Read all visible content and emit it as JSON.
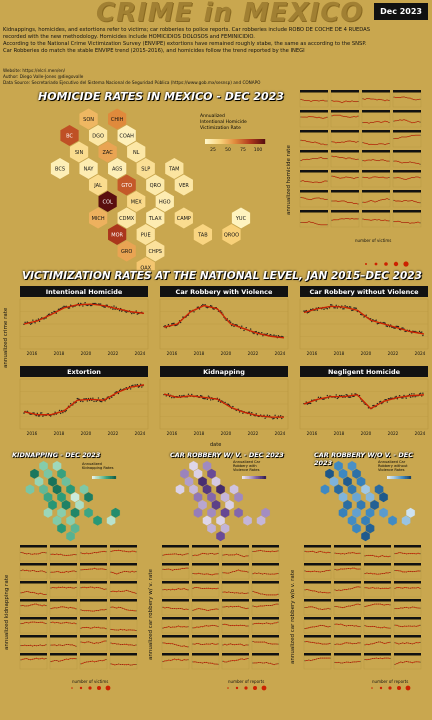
{
  "header": {
    "title": "CRIME in MEXICO",
    "badge": "Dec 2023"
  },
  "intro": {
    "lines": [
      "Kidnappings, homicides, and extortions refer to victims; car robberies to police reports. Car robberies include ROBO DE COCHE DE 4 RUEDAS",
      "recorded with the new methodology. Homicides include HOMICIDIOS DOLOSOS and FEMINICIDIO.",
      "According to the National Crime Victimization Survey (ENVIPE) extortions have remained roughly stabe, the same as according to the SNSP.",
      "Car Robberies do match the stable ENVIPE trend (2015-2016), and homicides follow the trend reported by the INEGI"
    ],
    "website": "Website: https://elcri.men/en/",
    "author": "Author: Diego Valle-Jones @diegovalle",
    "source": "Data Source: Secretariado Ejecutivo del Sistema Nacional de Seguridad Pública (https://www.gob.mx/sesnsp) and CONAPO"
  },
  "homicide_map": {
    "title": "HOMICIDE RATES IN MEXICO - DEC 2023",
    "legend_title": "Annualized\nIntentional Homicide\nVictimization Rate",
    "legend_ticks": [
      "25",
      "50",
      "75",
      "100"
    ],
    "states": [
      {
        "abbr": "SON",
        "v": 38
      },
      {
        "abbr": "CHIH",
        "v": 55
      },
      {
        "abbr": "BC",
        "v": 75
      },
      {
        "abbr": "DGO",
        "v": 12
      },
      {
        "abbr": "COAH",
        "v": 5
      },
      {
        "abbr": "SIN",
        "v": 20
      },
      {
        "abbr": "ZAC",
        "v": 45
      },
      {
        "abbr": "NL",
        "v": 12
      },
      {
        "abbr": "BCS",
        "v": 6
      },
      {
        "abbr": "NAY",
        "v": 8
      },
      {
        "abbr": "AGS",
        "v": 6
      },
      {
        "abbr": "SLP",
        "v": 18
      },
      {
        "abbr": "TAM",
        "v": 14
      },
      {
        "abbr": "JAL",
        "v": 20
      },
      {
        "abbr": "GTO",
        "v": 72
      },
      {
        "abbr": "QRO",
        "v": 10
      },
      {
        "abbr": "VER",
        "v": 12
      },
      {
        "abbr": "COL",
        "v": 110
      },
      {
        "abbr": "MEX",
        "v": 22
      },
      {
        "abbr": "HGO",
        "v": 8
      },
      {
        "abbr": "MICH",
        "v": 40
      },
      {
        "abbr": "CDMX",
        "v": 12
      },
      {
        "abbr": "TLAX",
        "v": 8
      },
      {
        "abbr": "CAMP",
        "v": 20
      },
      {
        "abbr": "YUC",
        "v": 3
      },
      {
        "abbr": "MOR",
        "v": 85
      },
      {
        "abbr": "PUE",
        "v": 15
      },
      {
        "abbr": "TAB",
        "v": 25
      },
      {
        "abbr": "QROO",
        "v": 28
      },
      {
        "abbr": "GRO",
        "v": 45
      },
      {
        "abbr": "CHPS",
        "v": 16
      },
      {
        "abbr": "OAX",
        "v": 32
      }
    ],
    "facet_ylabel": "annualized homicide rate",
    "size_legend_title": "number of victims"
  },
  "national": {
    "title": "VICTIMIZATION RATES AT THE NATIONAL LEVEL, JAN 2015–DEC 2023",
    "ylabel": "annualized crime rate",
    "xlabel": "date",
    "xticks": [
      "2016",
      "2018",
      "2020",
      "2022",
      "2024"
    ]
  },
  "kidnapping": {
    "title": "KIDNAPPING - DEC 2023",
    "legend_title": "Annualized\nKidnapping Rates",
    "ylabel": "annualized kidnapping rate",
    "size_legend_title": "number of victims"
  },
  "carviolence": {
    "title": "CAR ROBBERY W/ V. - DEC 2023",
    "legend_title": "Annualized Car\nRobbery with\nViolence Rates",
    "ylabel": "annualized car robbery w/ v. rate",
    "size_legend_title": "number of reports"
  },
  "carnoviolence": {
    "title": "CAR ROBBERY W/O V. - DEC 2023",
    "legend_title": "Annualized Car\nRobbery without\nViolence Rates",
    "ylabel": "annualized car robbery w/o v. rate",
    "size_legend_title": "number of reports"
  },
  "colors": {
    "background": "#c9a74f",
    "trend": "#cc2200",
    "point": "#222222"
  },
  "chart_data": [
    {
      "type": "scatter",
      "title": "Intentional Homicide",
      "x": [
        "2015",
        "2016",
        "2017",
        "2018",
        "2019",
        "2020",
        "2021",
        "2022",
        "2023",
        "2024"
      ],
      "y": [
        15,
        17,
        21,
        25.5,
        27.5,
        28,
        27,
        25,
        23,
        22
      ],
      "ylim": [
        0,
        30
      ]
    },
    {
      "type": "scatter",
      "title": "Car Robbery with Violence",
      "x": [
        "2015",
        "2016",
        "2017",
        "2018",
        "2019",
        "2020",
        "2021",
        "2022",
        "2023",
        "2024"
      ],
      "y": [
        33,
        35,
        43,
        47,
        45,
        35,
        32,
        29,
        27,
        26
      ],
      "ylim": [
        20,
        50
      ]
    },
    {
      "type": "scatter",
      "title": "Car Robbery without Violence",
      "x": [
        "2015",
        "2016",
        "2017",
        "2018",
        "2019",
        "2020",
        "2021",
        "2022",
        "2023",
        "2024"
      ],
      "y": [
        95,
        100,
        103,
        102,
        98,
        85,
        80,
        75,
        70,
        67
      ],
      "ylim": [
        50,
        110
      ]
    },
    {
      "type": "scatter",
      "title": "Extortion",
      "x": [
        "2015",
        "2016",
        "2017",
        "2018",
        "2019",
        "2020",
        "2021",
        "2022",
        "2023",
        "2024"
      ],
      "y": [
        5,
        4.6,
        4.6,
        5.1,
        6.5,
        6.6,
        6.5,
        7.5,
        8.2,
        8.5
      ],
      "ylim": [
        3,
        9
      ]
    },
    {
      "type": "scatter",
      "title": "Kidnapping",
      "x": [
        "2015",
        "2016",
        "2017",
        "2018",
        "2019",
        "2020",
        "2021",
        "2022",
        "2023",
        "2024"
      ],
      "y": [
        1.2,
        1.1,
        1.15,
        1.1,
        1.05,
        0.8,
        0.65,
        0.55,
        0.5,
        0.5
      ],
      "ylim": [
        0.2,
        1.6
      ]
    },
    {
      "type": "scatter",
      "title": "Negligent Homicide",
      "x": [
        "2015",
        "2016",
        "2017",
        "2018",
        "2019",
        "2020",
        "2021",
        "2022",
        "2023",
        "2024"
      ],
      "y": [
        11.5,
        12,
        12.3,
        12.3,
        12.5,
        11,
        11.8,
        12.2,
        12.4,
        12.5
      ],
      "ylim": [
        9,
        14
      ]
    }
  ]
}
